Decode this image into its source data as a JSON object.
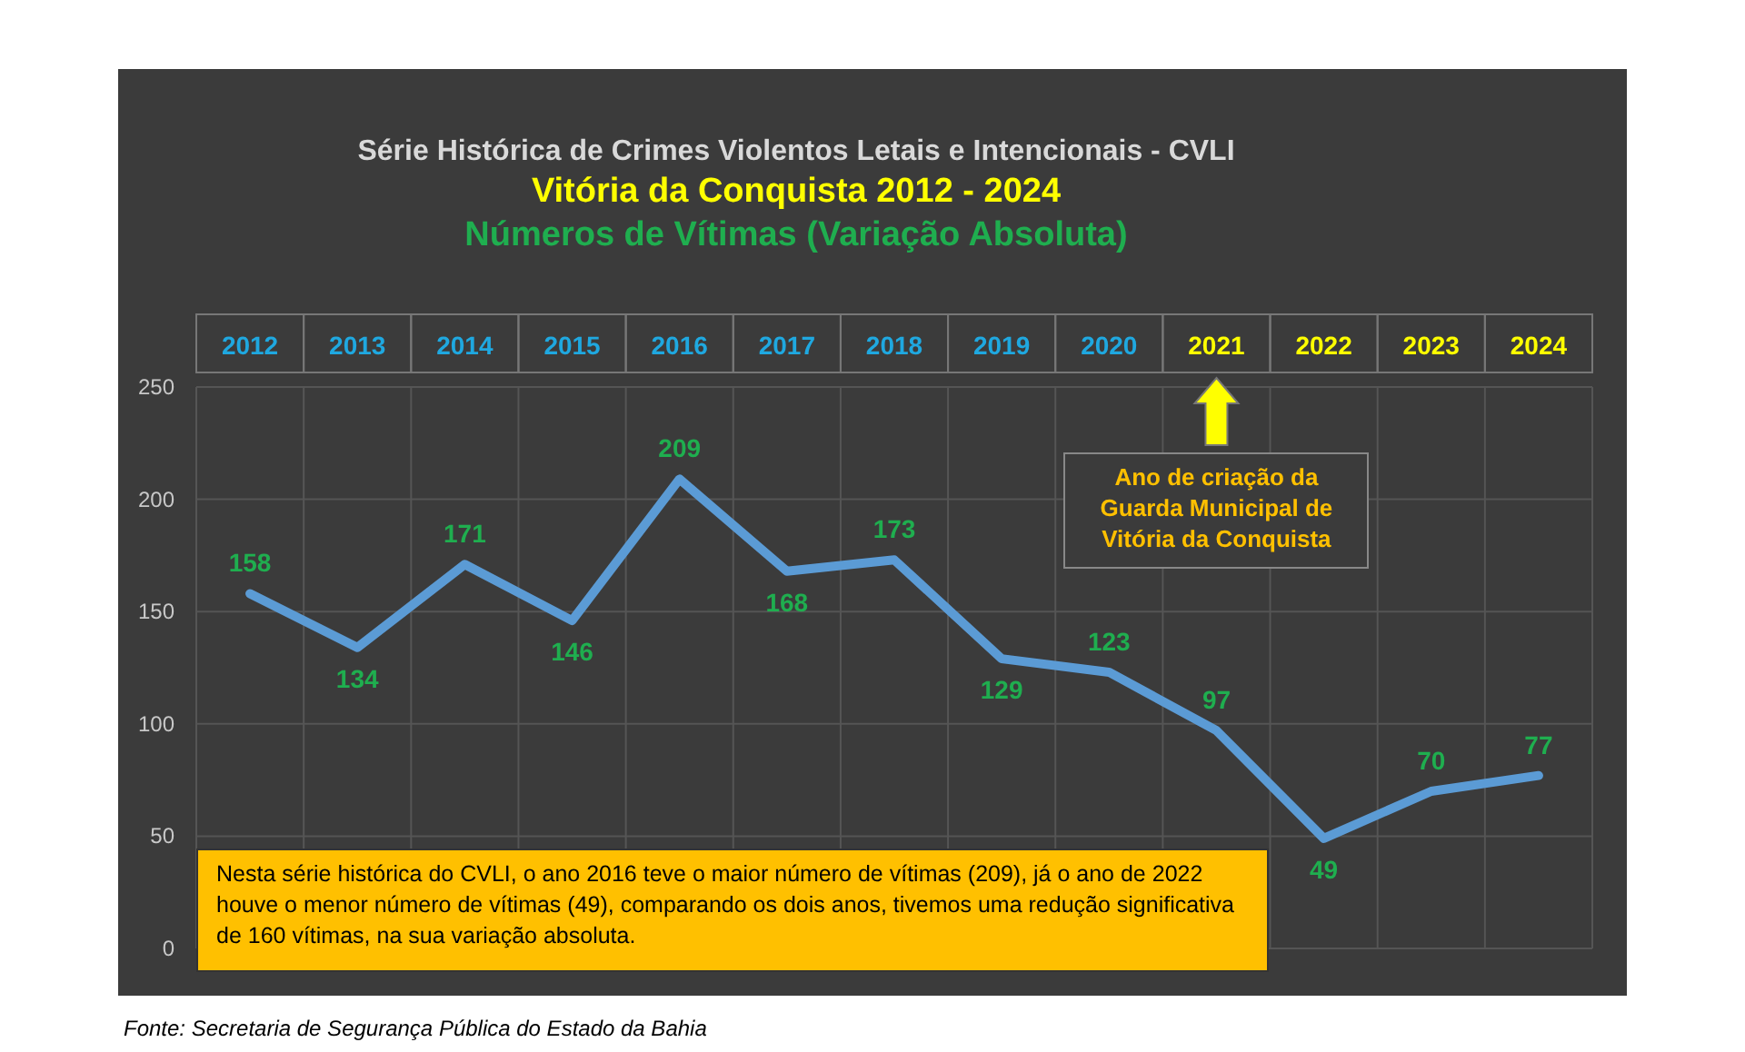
{
  "chart_data": {
    "type": "line",
    "title": "Série Histórica de Crimes Violentos Letais e Intencionais - CVLI",
    "subtitle": "Vitória da Conquista  2012 - 2024",
    "categories": [
      "2012",
      "2013",
      "2014",
      "2015",
      "2016",
      "2017",
      "2018",
      "2019",
      "2020",
      "2021",
      "2022",
      "2023",
      "2024"
    ],
    "series": [
      {
        "color": "#5b9bd5",
        "values": [
          158,
          134,
          171,
          146,
          209,
          168,
          173,
          129,
          123,
          97,
          49,
          70,
          77
        ]
      }
    ],
    "ylim": [
      0,
      250
    ],
    "yticks": [
      0,
      50,
      100,
      150,
      200,
      250
    ],
    "grid": true,
    "data_labels": true,
    "marker": "none",
    "line_style": "solid",
    "annotations": [
      "Números de Vítimas (Variação Absoluta)",
      "Ano de criação da Guarda Municipal de Vitória da Conquista",
      "Nesta série histórica do CVLI, o ano 2016 teve o maior número de vítimas (209), já o ano de 2022 houve o menor número de vítimas (49), comparando os dois anos, tivemos uma redução significativa de 160 vítimas, na sua variação absoluta.",
      "Fonte: Secretaria de Segurança Pública do Estado da Bahia"
    ]
  }
}
